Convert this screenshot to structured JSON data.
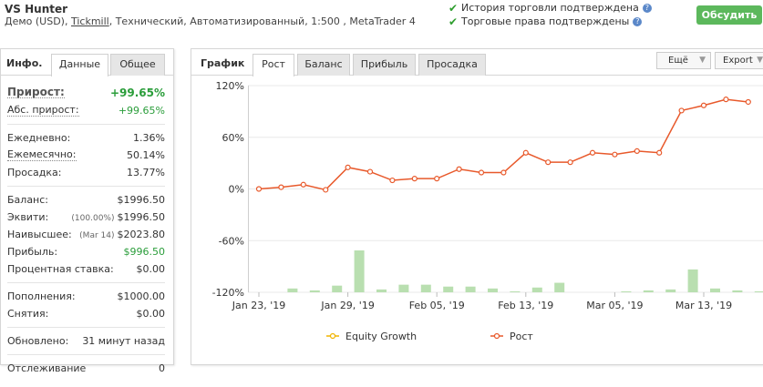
{
  "header": {
    "title": "VS Hunter",
    "sub_prefix": "Демо (USD), ",
    "sub_link": "Tickmill",
    "sub_suffix": ", Технический, Автоматизированный, 1:500 , MetaTrader 4",
    "verif_history": "История торговли подтверждена",
    "verif_rights": "Торговые права подтверждены",
    "discuss_label": "Обсудить",
    "qmark": "?"
  },
  "left": {
    "title": "Инфо.",
    "tabs": [
      "Данные",
      "Общее"
    ],
    "gain": {
      "label": "Прирост:",
      "value": "+99.65%"
    },
    "abs_gain": {
      "label": "Абс. прирост:",
      "value": "+99.65%"
    },
    "daily": {
      "label": "Ежедневно:",
      "value": "1.36%"
    },
    "monthly": {
      "label": "Ежемесячно:",
      "value": "50.14%"
    },
    "drawdown": {
      "label": "Просадка:",
      "value": "13.77%"
    },
    "balance": {
      "label": "Баланс:",
      "value": "$1996.50"
    },
    "equity": {
      "label": "Эквити:",
      "note": "(100.00%)",
      "value": "$1996.50"
    },
    "highest": {
      "label": "Наивысшее:",
      "note": "(Mar 14)",
      "value": "$2023.80"
    },
    "profit": {
      "label": "Прибыль:",
      "value": "$996.50"
    },
    "interest": {
      "label": "Процентная ставка:",
      "value": "$0.00"
    },
    "deposits": {
      "label": "Пополнения:",
      "value": "$1000.00"
    },
    "withdrawals": {
      "label": "Снятия:",
      "value": "$0.00"
    },
    "updated": {
      "label": "Обновлено:",
      "value": "31 минут назад"
    },
    "tracking": {
      "label": "Отслеживание",
      "value": "0"
    }
  },
  "chart_panel": {
    "title": "График",
    "tabs": [
      "Рост",
      "Баланс",
      "Прибыль",
      "Просадка"
    ],
    "more_label": "Ещё",
    "export_label": "Export"
  },
  "colors": {
    "growth_line": "#e8592b",
    "equity_line": "#f0b400",
    "bars": "#b9dfb0",
    "grid": "#e8e8e8",
    "green": "#2a9d3a",
    "button": "#5cb85c"
  },
  "chart_data": {
    "type": "line",
    "y_ticks": [
      "120%",
      "60%",
      "0%",
      "-60%",
      "-120%"
    ],
    "ylim": [
      -120,
      120
    ],
    "x_ticks": [
      "Jan 23, '19",
      "Jan 29, '19",
      "Feb 05, '19",
      "Feb 13, '19",
      "Mar 05, '19",
      "Mar 13, '19"
    ],
    "series": [
      {
        "name": "Equity Growth",
        "values": []
      },
      {
        "name": "Рост",
        "values": [
          0,
          2,
          5,
          -1,
          25,
          20,
          10,
          12,
          12,
          23,
          19,
          19,
          42,
          31,
          31,
          42,
          40,
          44,
          42,
          91,
          97,
          104,
          101
        ]
      }
    ],
    "bars": [
      0,
      4,
      2,
      7,
      44,
      3,
      8,
      8,
      6,
      6,
      4,
      1,
      5,
      10,
      0,
      0,
      1,
      2,
      3,
      24,
      4,
      2,
      1
    ]
  }
}
